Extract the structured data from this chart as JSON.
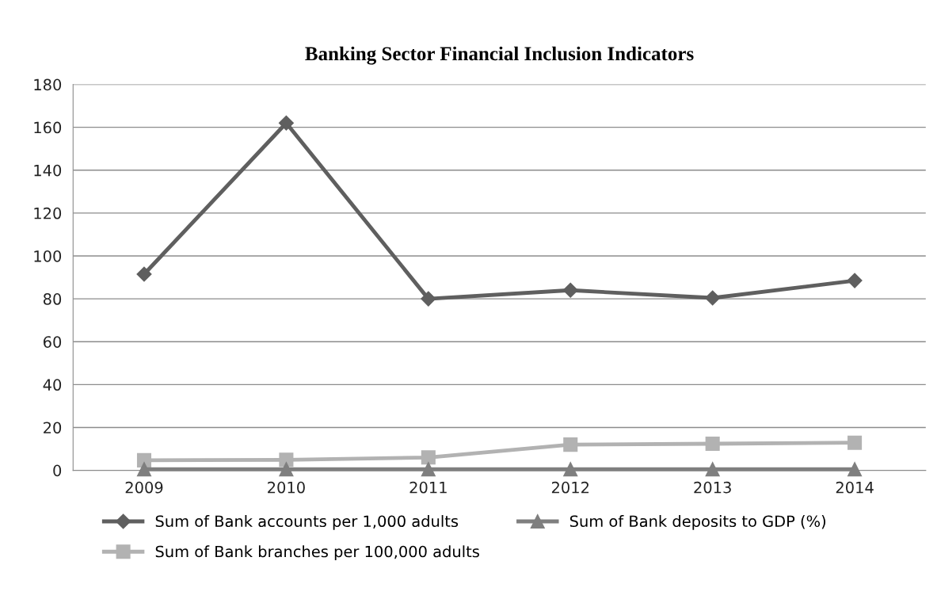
{
  "chart_data": {
    "type": "line",
    "title": "Banking Sector Financial Inclusion Indicators",
    "categories": [
      "2009",
      "2010",
      "2011",
      "2012",
      "2013",
      "2014"
    ],
    "series": [
      {
        "name": "Sum of Bank accounts per 1,000 adults",
        "color": "#5f5f5f",
        "marker": "diamond",
        "values": [
          91.5,
          162,
          80,
          84,
          80.4,
          88.5
        ]
      },
      {
        "name": "Sum of Bank branches per 100,000 adults",
        "color": "#b2b2b2",
        "marker": "square",
        "values": [
          4.7,
          4.9,
          6,
          12,
          12.4,
          12.9
        ]
      },
      {
        "name": "Sum of Bank deposits to GDP (%)",
        "color": "#7f7f7f",
        "marker": "triangle",
        "values": [
          0.5,
          0.5,
          0.5,
          0.5,
          0.5,
          0.5
        ]
      }
    ],
    "ylim": [
      0,
      180
    ],
    "yticks": [
      0,
      20,
      40,
      60,
      80,
      100,
      120,
      140,
      160,
      180
    ],
    "grid": "y",
    "legend": "bottom",
    "line_style": "solid"
  }
}
